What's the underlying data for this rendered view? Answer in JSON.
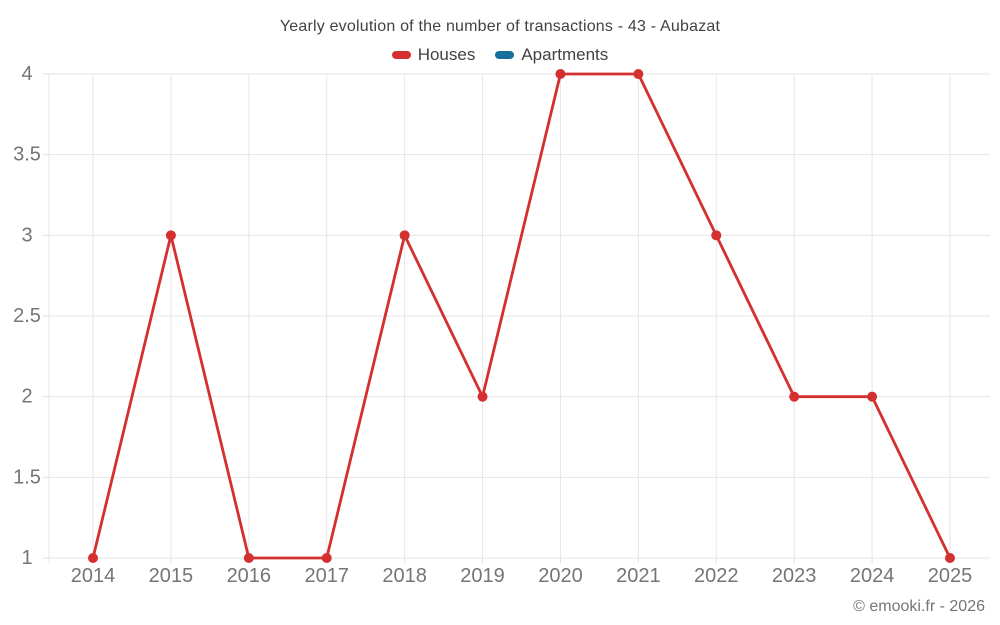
{
  "header": {
    "title": "Yearly evolution of the number of transactions - 43 - Aubazat"
  },
  "legend": {
    "items": [
      {
        "label": "Houses",
        "color": "#d3302f"
      },
      {
        "label": "Apartments",
        "color": "#17709c"
      }
    ]
  },
  "footer": {
    "copyright": "© emooki.fr - 2026"
  },
  "colors": {
    "grid": "#e6e6e6",
    "tick": "#dedede",
    "axis_text": "#757575",
    "title_text": "#424242",
    "houses_red": "#d3302f",
    "apartments_blue": "#17709c"
  },
  "chart_data": {
    "type": "line",
    "title": "Yearly evolution of the number of transactions - 43 - Aubazat",
    "categories": [
      "2014",
      "2015",
      "2016",
      "2017",
      "2018",
      "2019",
      "2020",
      "2021",
      "2022",
      "2023",
      "2024",
      "2025"
    ],
    "series": [
      {
        "name": "Houses",
        "color": "#d3302f",
        "values": [
          1,
          3,
          1,
          1,
          3,
          2,
          4,
          4,
          3,
          2,
          2,
          1
        ]
      },
      {
        "name": "Apartments",
        "color": "#17709c",
        "values": []
      }
    ],
    "xlabel": "",
    "ylabel": "",
    "ylim": [
      1,
      4
    ],
    "ytick_step": 0.5,
    "ytick_labels": [
      "1",
      "1.5",
      "2",
      "2.5",
      "3",
      "3.5",
      "4"
    ],
    "grid": true,
    "legend_position": "top",
    "marker": "circle"
  }
}
